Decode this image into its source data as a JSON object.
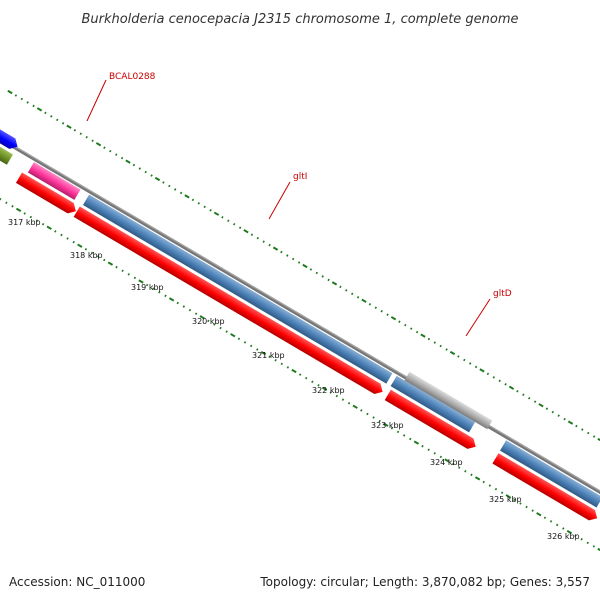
{
  "title": "Burkholderia cenocepacia J2315 chromosome 1, complete genome",
  "footer": {
    "accession": "Accession: NC_011000",
    "summary": "Topology: circular; Length: 3,870,082 bp; Genes: 3,557"
  },
  "colors": {
    "backbone": "#808080",
    "tick": "#1f7a1f",
    "label": "#cc0000",
    "gene_red": "#ff0000",
    "gene_blue": "#4a7fb5",
    "gene_gray": "#aaaaaa",
    "gene_magenta": "#ff3399",
    "gene_darkblue": "#0000ff",
    "gene_olive": "#6b8e23"
  },
  "scale_labels": [
    "317 kbp",
    "318 kbp",
    "319 kbp",
    "320 kbp",
    "321 kbp",
    "322 kbp",
    "323 kbp",
    "324 kbp",
    "325 kbp",
    "326 kbp"
  ],
  "gene_labels": [
    "BCAL0288",
    "gltI",
    "gltD"
  ]
}
